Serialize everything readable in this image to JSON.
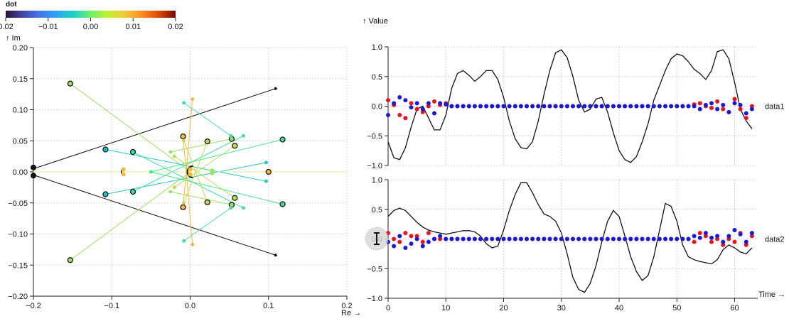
{
  "colorbar": {
    "title": "dot",
    "ticks": [
      "0.02",
      "−0.01",
      "0.00",
      "0.01",
      "0.02"
    ]
  },
  "chart_data": [
    {
      "type": "scatter",
      "title": "",
      "xlabel": "Re →",
      "ylabel": "↑ Im",
      "xlim": [
        -0.2,
        0.2
      ],
      "ylim": [
        -0.2,
        0.2
      ],
      "xticks": [
        "−0.2",
        "−0.1",
        "0.0",
        "0.1",
        "0.2"
      ],
      "yticks": [
        "0.20",
        "0.15",
        "0.10",
        "0.05",
        "0.00",
        "−0.05",
        "−0.10",
        "−0.15",
        "−0.20"
      ],
      "grid": true,
      "segments": [
        {
          "x1": -0.2,
          "y1": 0.005,
          "x2": 0.109,
          "y2": 0.134,
          "color": "#111111"
        },
        {
          "x1": -0.2,
          "y1": -0.005,
          "x2": 0.109,
          "y2": -0.134,
          "color": "#111111"
        },
        {
          "x1": -0.153,
          "y1": 0.142,
          "x2": 0.0,
          "y2": 0.0,
          "color": "#9be260"
        },
        {
          "x1": -0.153,
          "y1": -0.142,
          "x2": 0.0,
          "y2": 0.0,
          "color": "#9be260"
        },
        {
          "x1": -0.108,
          "y1": 0.036,
          "x2": 0.097,
          "y2": -0.015,
          "color": "#25c6c8"
        },
        {
          "x1": -0.108,
          "y1": -0.036,
          "x2": 0.097,
          "y2": 0.015,
          "color": "#25c6c8"
        },
        {
          "x1": -0.073,
          "y1": 0.032,
          "x2": 0.068,
          "y2": -0.058,
          "color": "#3fe0a6"
        },
        {
          "x1": -0.073,
          "y1": -0.032,
          "x2": 0.068,
          "y2": 0.058,
          "color": "#3fe0a6"
        },
        {
          "x1": 0.118,
          "y1": 0.052,
          "x2": -0.05,
          "y2": 0.0,
          "color": "#45e592"
        },
        {
          "x1": 0.118,
          "y1": -0.052,
          "x2": -0.05,
          "y2": 0.0,
          "color": "#45e592"
        },
        {
          "x1": 0.053,
          "y1": 0.053,
          "x2": -0.025,
          "y2": 0.032,
          "color": "#9be260"
        },
        {
          "x1": 0.053,
          "y1": -0.053,
          "x2": -0.025,
          "y2": -0.032,
          "color": "#9be260"
        },
        {
          "x1": 0.057,
          "y1": 0.042,
          "x2": -0.02,
          "y2": -0.025,
          "color": "#b8df50"
        },
        {
          "x1": 0.057,
          "y1": -0.042,
          "x2": -0.02,
          "y2": 0.025,
          "color": "#b8df50"
        },
        {
          "x1": 0.022,
          "y1": 0.049,
          "x2": -0.008,
          "y2": -0.05,
          "color": "#c9d849"
        },
        {
          "x1": 0.022,
          "y1": -0.049,
          "x2": -0.008,
          "y2": 0.05,
          "color": "#c9d849"
        },
        {
          "x1": -0.008,
          "y1": 0.111,
          "x2": 0.052,
          "y2": 0.058,
          "color": "#3fe0a6"
        },
        {
          "x1": -0.008,
          "y1": -0.111,
          "x2": 0.052,
          "y2": -0.058,
          "color": "#3fe0a6"
        },
        {
          "x1": -0.009,
          "y1": 0.057,
          "x2": 0.003,
          "y2": -0.117,
          "color": "#f5b93d"
        },
        {
          "x1": -0.009,
          "y1": -0.057,
          "x2": 0.003,
          "y2": 0.117,
          "color": "#f5b93d"
        },
        {
          "x1": 0.1,
          "y1": 0.0,
          "x2": 0.028,
          "y2": 0.0,
          "color": "#f5b93d"
        },
        {
          "x1": -0.2,
          "y1": 0.0,
          "x2": 0.2,
          "y2": 0.0,
          "color": "#e6ef9a"
        }
      ],
      "points": [
        {
          "x": -0.2,
          "y": 0.007,
          "color": "#111111",
          "ring": false,
          "size": 4
        },
        {
          "x": -0.2,
          "y": -0.006,
          "color": "#111111",
          "ring": false,
          "size": 4
        },
        {
          "x": 0.109,
          "y": 0.134,
          "color": "#111111",
          "ring": false,
          "size": 2
        },
        {
          "x": 0.109,
          "y": -0.134,
          "color": "#111111",
          "ring": false,
          "size": 2
        },
        {
          "x": -0.153,
          "y": 0.142,
          "color": "#9be260",
          "ring": true,
          "size": 3.5
        },
        {
          "x": -0.153,
          "y": -0.142,
          "color": "#9be260",
          "ring": true,
          "size": 3.5
        },
        {
          "x": -0.108,
          "y": 0.036,
          "color": "#25c6c8",
          "ring": true,
          "size": 3.5
        },
        {
          "x": -0.108,
          "y": -0.036,
          "color": "#25c6c8",
          "ring": true,
          "size": 3.5
        },
        {
          "x": -0.073,
          "y": 0.032,
          "color": "#3fe0a6",
          "ring": true,
          "size": 3.5
        },
        {
          "x": -0.073,
          "y": -0.032,
          "color": "#3fe0a6",
          "ring": true,
          "size": 3.5
        },
        {
          "x": -0.085,
          "y": 0.004,
          "color": "#f5b93d",
          "ring": false,
          "size": 3
        },
        {
          "x": -0.085,
          "y": -0.004,
          "color": "#f5b93d",
          "ring": false,
          "size": 3
        },
        {
          "x": -0.009,
          "y": 0.057,
          "color": "#f5b93d",
          "ring": true,
          "size": 3.5
        },
        {
          "x": -0.009,
          "y": -0.057,
          "color": "#f5b93d",
          "ring": true,
          "size": 3.5
        },
        {
          "x": 0.022,
          "y": 0.049,
          "color": "#c9d849",
          "ring": true,
          "size": 3.5
        },
        {
          "x": 0.022,
          "y": -0.049,
          "color": "#c9d849",
          "ring": true,
          "size": 3.5
        },
        {
          "x": 0.053,
          "y": 0.053,
          "color": "#9be260",
          "ring": true,
          "size": 3.5
        },
        {
          "x": 0.053,
          "y": -0.053,
          "color": "#9be260",
          "ring": true,
          "size": 3.5
        },
        {
          "x": 0.057,
          "y": 0.042,
          "color": "#b8df50",
          "ring": true,
          "size": 3.5
        },
        {
          "x": 0.057,
          "y": -0.042,
          "color": "#b8df50",
          "ring": true,
          "size": 3.5
        },
        {
          "x": 0.118,
          "y": 0.052,
          "color": "#45e592",
          "ring": true,
          "size": 3.5
        },
        {
          "x": 0.118,
          "y": -0.052,
          "color": "#45e592",
          "ring": true,
          "size": 3.5
        },
        {
          "x": 0.1,
          "y": 0.0,
          "color": "#f5b93d",
          "ring": true,
          "size": 3.5
        },
        {
          "x": 0.0,
          "y": 0.004,
          "color": "#f5b93d",
          "ring": false,
          "size": 3
        },
        {
          "x": 0.0,
          "y": -0.004,
          "color": "#f5b93d",
          "ring": false,
          "size": 3
        },
        {
          "x": 0.028,
          "y": 0.002,
          "color": "#9be260",
          "ring": false,
          "size": 3
        },
        {
          "x": 0.028,
          "y": -0.002,
          "color": "#9be260",
          "ring": false,
          "size": 3
        },
        {
          "x": -0.008,
          "y": 0.111,
          "color": "#3fe0a6",
          "ring": false,
          "size": 2.5
        },
        {
          "x": -0.008,
          "y": -0.111,
          "color": "#3fe0a6",
          "ring": false,
          "size": 2.5
        },
        {
          "x": 0.003,
          "y": 0.117,
          "color": "#f5b93d",
          "ring": false,
          "size": 2.5
        },
        {
          "x": 0.003,
          "y": -0.117,
          "color": "#f5b93d",
          "ring": false,
          "size": 2.5
        },
        {
          "x": 0.068,
          "y": 0.058,
          "color": "#3fe0a6",
          "ring": false,
          "size": 2.5
        },
        {
          "x": 0.068,
          "y": -0.058,
          "color": "#3fe0a6",
          "ring": false,
          "size": 2.5
        },
        {
          "x": 0.097,
          "y": 0.015,
          "color": "#25c6c8",
          "ring": false,
          "size": 2.5
        },
        {
          "x": 0.097,
          "y": -0.015,
          "color": "#25c6c8",
          "ring": false,
          "size": 2.5
        },
        {
          "x": -0.05,
          "y": 0.0,
          "color": "#45e592",
          "ring": false,
          "size": 2.5
        },
        {
          "x": -0.025,
          "y": 0.032,
          "color": "#9be260",
          "ring": false,
          "size": 2.5
        },
        {
          "x": -0.025,
          "y": -0.032,
          "color": "#9be260",
          "ring": false,
          "size": 2.5
        },
        {
          "x": -0.02,
          "y": 0.025,
          "color": "#b8df50",
          "ring": false,
          "size": 2.5
        },
        {
          "x": -0.02,
          "y": -0.025,
          "color": "#b8df50",
          "ring": false,
          "size": 2.5
        },
        {
          "x": -0.008,
          "y": 0.05,
          "color": "#c9d849",
          "ring": false,
          "size": 2.5
        },
        {
          "x": -0.008,
          "y": -0.05,
          "color": "#c9d849",
          "ring": false,
          "size": 2.5
        },
        {
          "x": 0.052,
          "y": 0.058,
          "color": "#3fe0a6",
          "ring": false,
          "size": 2.5
        },
        {
          "x": 0.052,
          "y": -0.058,
          "color": "#3fe0a6",
          "ring": false,
          "size": 2.5
        }
      ]
    },
    {
      "type": "line",
      "title": "",
      "xlabel": "Time →",
      "ylabel": "↑ Value",
      "xlim": [
        0,
        64
      ],
      "xticks": [
        "0",
        "10",
        "20",
        "30",
        "40",
        "50",
        "60"
      ],
      "grid": true,
      "panels": [
        {
          "name": "data1",
          "ylim": [
            -1.0,
            1.0
          ],
          "yticks": [
            "1.0",
            "0.5",
            "0.0",
            "−0.5",
            "−1.0"
          ],
          "line": [
            -0.6,
            -0.87,
            -0.9,
            -0.7,
            -0.35,
            -0.05,
            0.0,
            -0.2,
            -0.4,
            -0.4,
            -0.15,
            0.3,
            0.55,
            0.6,
            0.52,
            0.42,
            0.5,
            0.6,
            0.6,
            0.45,
            0.15,
            -0.25,
            -0.55,
            -0.7,
            -0.72,
            -0.6,
            -0.25,
            0.2,
            0.6,
            0.9,
            0.95,
            0.82,
            0.5,
            0.1,
            -0.1,
            -0.05,
            0.12,
            0.15,
            -0.1,
            -0.45,
            -0.75,
            -0.9,
            -0.95,
            -0.85,
            -0.6,
            -0.3,
            0.1,
            0.35,
            0.6,
            0.8,
            0.88,
            0.85,
            0.75,
            0.62,
            0.55,
            0.45,
            0.6,
            0.92,
            0.95,
            0.8,
            0.4,
            -0.05,
            -0.25,
            -0.38
          ],
          "red": [
            0.1,
            0.02,
            -0.15,
            -0.2,
            0.05,
            -0.05,
            -0.1,
            0.0,
            0.08,
            0.02,
            0.05,
            0.0,
            0.0,
            0.0,
            0.0,
            0.0,
            0.0,
            0.0,
            0.0,
            0.0,
            0.0,
            0.0,
            0.0,
            0.0,
            0.0,
            0.0,
            0.0,
            0.0,
            0.0,
            0.0,
            0.0,
            0.0,
            0.0,
            0.0,
            0.0,
            0.0,
            0.0,
            0.0,
            0.0,
            0.0,
            0.0,
            0.0,
            0.0,
            0.0,
            0.0,
            0.0,
            0.0,
            0.0,
            0.0,
            0.0,
            0.0,
            0.0,
            0.0,
            0.03,
            0.05,
            0.0,
            -0.03,
            0.08,
            -0.05,
            -0.1,
            0.12,
            -0.05,
            -0.2,
            0.0
          ],
          "blue": [
            -0.15,
            0.05,
            0.15,
            0.1,
            -0.02,
            0.05,
            -0.05,
            0.05,
            -0.12,
            0.05,
            0.03,
            0.0,
            0.0,
            0.0,
            0.0,
            0.0,
            0.0,
            0.0,
            0.0,
            0.0,
            0.0,
            0.0,
            0.0,
            0.0,
            0.0,
            0.0,
            0.0,
            0.0,
            0.0,
            0.0,
            0.0,
            0.0,
            0.0,
            0.0,
            0.0,
            0.0,
            0.0,
            0.0,
            0.0,
            0.0,
            0.0,
            0.0,
            0.0,
            0.0,
            0.0,
            0.0,
            0.0,
            0.0,
            0.0,
            0.0,
            0.0,
            0.0,
            0.0,
            0.0,
            -0.05,
            0.02,
            0.05,
            -0.05,
            0.02,
            -0.1,
            0.05,
            0.02,
            -0.12,
            -0.05
          ]
        },
        {
          "name": "data2",
          "ylim": [
            -1.0,
            1.0
          ],
          "yticks": [
            "1.0",
            "0.5",
            "0.0",
            "−0.5",
            "−1.0"
          ],
          "line": [
            0.38,
            0.48,
            0.52,
            0.48,
            0.38,
            0.28,
            0.2,
            0.15,
            0.12,
            0.1,
            0.08,
            0.1,
            0.12,
            0.14,
            0.14,
            0.12,
            0.05,
            -0.08,
            -0.15,
            -0.12,
            0.15,
            0.48,
            0.75,
            0.95,
            0.95,
            0.78,
            0.58,
            0.42,
            0.38,
            0.3,
            0.1,
            -0.25,
            -0.65,
            -0.85,
            -0.9,
            -0.75,
            -0.45,
            -0.05,
            0.3,
            0.48,
            0.38,
            0.05,
            -0.3,
            -0.55,
            -0.7,
            -0.62,
            -0.3,
            0.15,
            0.6,
            0.55,
            0.3,
            -0.1,
            -0.3,
            -0.35,
            -0.38,
            -0.4,
            -0.42,
            -0.35,
            -0.18,
            -0.1,
            -0.15,
            -0.22,
            -0.25,
            -0.15
          ],
          "red": [
            0.1,
            0.0,
            -0.05,
            0.1,
            0.05,
            0.05,
            -0.05,
            0.1,
            0.0,
            0.0,
            0.0,
            0.0,
            0.0,
            0.0,
            0.0,
            0.0,
            0.0,
            0.0,
            0.0,
            0.0,
            0.0,
            0.0,
            0.0,
            0.0,
            0.0,
            0.0,
            0.0,
            0.0,
            0.0,
            0.0,
            0.0,
            0.0,
            0.0,
            0.0,
            0.0,
            0.0,
            0.0,
            0.0,
            0.0,
            0.0,
            0.0,
            0.0,
            0.0,
            0.0,
            0.0,
            0.0,
            0.0,
            0.0,
            0.0,
            0.0,
            0.0,
            0.0,
            0.0,
            -0.05,
            0.1,
            0.05,
            -0.05,
            0.0,
            -0.1,
            0.0,
            -0.05,
            0.1,
            -0.1,
            0.05
          ],
          "blue": [
            -0.05,
            -0.12,
            0.05,
            -0.15,
            -0.08,
            0.0,
            -0.12,
            -0.05,
            0.0,
            0.05,
            0.0,
            0.0,
            0.0,
            0.0,
            0.0,
            0.0,
            0.0,
            0.0,
            0.0,
            0.0,
            0.0,
            0.0,
            0.0,
            0.0,
            0.0,
            0.0,
            0.0,
            0.0,
            0.0,
            0.0,
            0.0,
            0.0,
            0.0,
            0.0,
            0.0,
            0.0,
            0.0,
            0.0,
            0.0,
            0.0,
            0.0,
            0.0,
            0.0,
            0.0,
            0.0,
            0.0,
            0.0,
            0.0,
            0.0,
            0.0,
            0.0,
            0.0,
            0.0,
            0.05,
            0.02,
            0.1,
            0.02,
            0.05,
            -0.05,
            0.05,
            0.15,
            0.08,
            -0.05,
            0.1
          ]
        }
      ]
    }
  ]
}
